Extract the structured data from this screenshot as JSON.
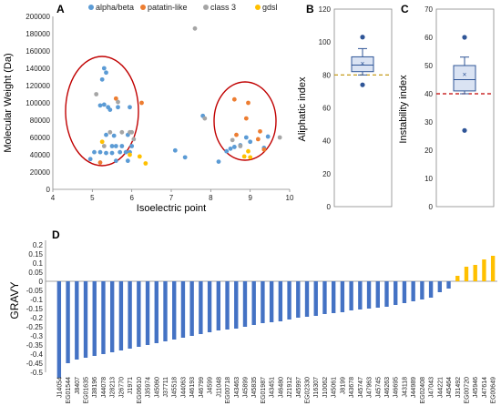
{
  "colors": {
    "alpha_beta": "#5b9bd5",
    "patatin_like": "#ed7d31",
    "class_3": "#a5a5a5",
    "gdsl": "#ffc000",
    "box_fill": "#dae3f3",
    "box_stroke": "#2f5597",
    "ellipse": "#c00000",
    "ref_aliphatic": "#bf9000",
    "ref_instability": "#c00000",
    "bar_neg": "#4472c4",
    "bar_pos": "#ffc000"
  },
  "chart_data": [
    {
      "panel": "A",
      "type": "scatter",
      "xlabel": "Isoelectric point",
      "ylabel": "Molecular Weight (Da)",
      "xlim": [
        4,
        10
      ],
      "ylim": [
        0,
        200000
      ],
      "xticks": [
        4,
        5,
        6,
        7,
        8,
        9,
        10
      ],
      "yticks": [
        0,
        20000,
        40000,
        60000,
        80000,
        100000,
        120000,
        140000,
        160000,
        180000,
        200000
      ],
      "legend_position": "top",
      "grid": false,
      "ellipses_drawn": 2,
      "series": [
        {
          "name": "alpha/beta",
          "color_key": "alpha_beta",
          "points": [
            [
              5.3,
              140000
            ],
            [
              5.35,
              135000
            ],
            [
              5.25,
              127000
            ],
            [
              5.3,
              98000
            ],
            [
              5.2,
              97000
            ],
            [
              5.4,
              95000
            ],
            [
              5.45,
              92000
            ],
            [
              5.65,
              95000
            ],
            [
              5.95,
              95000
            ],
            [
              5.35,
              63000
            ],
            [
              5.55,
              62000
            ],
            [
              5.9,
              63000
            ],
            [
              5.6,
              50000
            ],
            [
              5.75,
              50000
            ],
            [
              5.5,
              50000
            ],
            [
              5.2,
              43000
            ],
            [
              5.35,
              42000
            ],
            [
              5.5,
              42000
            ],
            [
              5.7,
              43000
            ],
            [
              5.85,
              43000
            ],
            [
              5.95,
              43000
            ],
            [
              5.6,
              33000
            ],
            [
              5.9,
              33000
            ],
            [
              6.0,
              50000
            ],
            [
              4.95,
              35000
            ],
            [
              5.05,
              43000
            ],
            [
              7.1,
              45000
            ],
            [
              7.35,
              37000
            ],
            [
              7.8,
              85000
            ],
            [
              8.4,
              44000
            ],
            [
              8.5,
              47000
            ],
            [
              8.6,
              49000
            ],
            [
              8.75,
              51000
            ],
            [
              9.0,
              55000
            ],
            [
              9.35,
              48000
            ],
            [
              9.45,
              61000
            ],
            [
              8.9,
              60000
            ],
            [
              8.2,
              32000
            ]
          ]
        },
        {
          "name": "patatin-like",
          "color_key": "patatin_like",
          "points": [
            [
              5.6,
              105000
            ],
            [
              5.2,
              31000
            ],
            [
              6.25,
              100000
            ],
            [
              8.6,
              104000
            ],
            [
              8.95,
              100000
            ],
            [
              8.9,
              82000
            ],
            [
              9.25,
              67000
            ],
            [
              9.35,
              46000
            ],
            [
              8.65,
              63000
            ],
            [
              9.2,
              58000
            ]
          ]
        },
        {
          "name": "class 3",
          "color_key": "class_3",
          "points": [
            [
              7.6,
              186000
            ],
            [
              5.1,
              110000
            ],
            [
              5.65,
              101000
            ],
            [
              5.45,
              66000
            ],
            [
              5.75,
              66000
            ],
            [
              6.0,
              66000
            ],
            [
              5.3,
              50000
            ],
            [
              6.05,
              58000
            ],
            [
              5.95,
              66000
            ],
            [
              7.85,
              82000
            ],
            [
              9.75,
              60000
            ],
            [
              8.75,
              50000
            ],
            [
              8.55,
              57000
            ]
          ]
        },
        {
          "name": "gdsl",
          "color_key": "gdsl",
          "points": [
            [
              5.25,
              55000
            ],
            [
              5.95,
              40000
            ],
            [
              6.2,
              38000
            ],
            [
              6.35,
              30000
            ],
            [
              8.85,
              38000
            ],
            [
              9.0,
              37000
            ],
            [
              8.95,
              44000
            ]
          ]
        }
      ]
    },
    {
      "panel": "B",
      "type": "box",
      "ylabel": "Aliphatic index",
      "ylim": [
        0,
        120
      ],
      "yticks": [
        0,
        20,
        40,
        60,
        80,
        100,
        120
      ],
      "whisker_low": 80,
      "q1": 82,
      "median": 86,
      "mean": 87,
      "q3": 91,
      "whisker_high": 96,
      "outliers": [
        103,
        74
      ],
      "reference_line": 80,
      "reference_color_key": "ref_aliphatic"
    },
    {
      "panel": "C",
      "type": "box",
      "ylabel": "Instability index",
      "ylim": [
        0,
        70
      ],
      "yticks": [
        0,
        10,
        20,
        30,
        40,
        50,
        60,
        70
      ],
      "whisker_low": 40,
      "q1": 41,
      "median": 45,
      "mean": 47,
      "q3": 50,
      "whisker_high": 53,
      "outliers": [
        60,
        27
      ],
      "reference_line": 40,
      "reference_color_key": "ref_instability"
    },
    {
      "panel": "D",
      "type": "bar",
      "ylabel": "GRAVY",
      "ylim": [
        -0.5,
        0.2
      ],
      "yticks": [
        0.2,
        0.15,
        0.1,
        0.05,
        0,
        -0.05,
        -0.1,
        -0.15,
        -0.2,
        -0.25,
        -0.3,
        -0.35,
        -0.4,
        -0.45,
        -0.5
      ],
      "grid": false,
      "categories": [
        "J14054",
        "EG01544",
        "J8407",
        "EG01635",
        "J38196",
        "J44078",
        "J28213",
        "J26770",
        "J1971",
        "EG06610",
        "J35974",
        "J45060",
        "J37711",
        "J45518",
        "J44063",
        "J46193",
        "J46799",
        "J4599",
        "J11048",
        "EG00718",
        "J43463",
        "J45899",
        "J45835",
        "EG01987",
        "J43451",
        "J46480",
        "J21912",
        "J45997",
        "EG02330",
        "J16307",
        "J10062",
        "J45061",
        "J8199",
        "J43678",
        "J45747",
        "J47963",
        "J45745",
        "J46263",
        "J46695",
        "J43118",
        "J44989",
        "EG02408",
        "J47043",
        "J44221",
        "J45464",
        "J31492",
        "EG00720",
        "J45946",
        "J47614",
        "EG00649"
      ],
      "values": [
        -0.53,
        -0.45,
        -0.43,
        -0.42,
        -0.41,
        -0.4,
        -0.39,
        -0.38,
        -0.37,
        -0.36,
        -0.35,
        -0.34,
        -0.33,
        -0.32,
        -0.31,
        -0.3,
        -0.29,
        -0.28,
        -0.27,
        -0.265,
        -0.26,
        -0.25,
        -0.24,
        -0.23,
        -0.225,
        -0.22,
        -0.21,
        -0.2,
        -0.195,
        -0.19,
        -0.18,
        -0.175,
        -0.17,
        -0.16,
        -0.155,
        -0.15,
        -0.145,
        -0.14,
        -0.13,
        -0.12,
        -0.11,
        -0.1,
        -0.09,
        -0.06,
        -0.04,
        0.03,
        0.08,
        0.09,
        0.12,
        0.14
      ],
      "positive_count": 5
    }
  ]
}
